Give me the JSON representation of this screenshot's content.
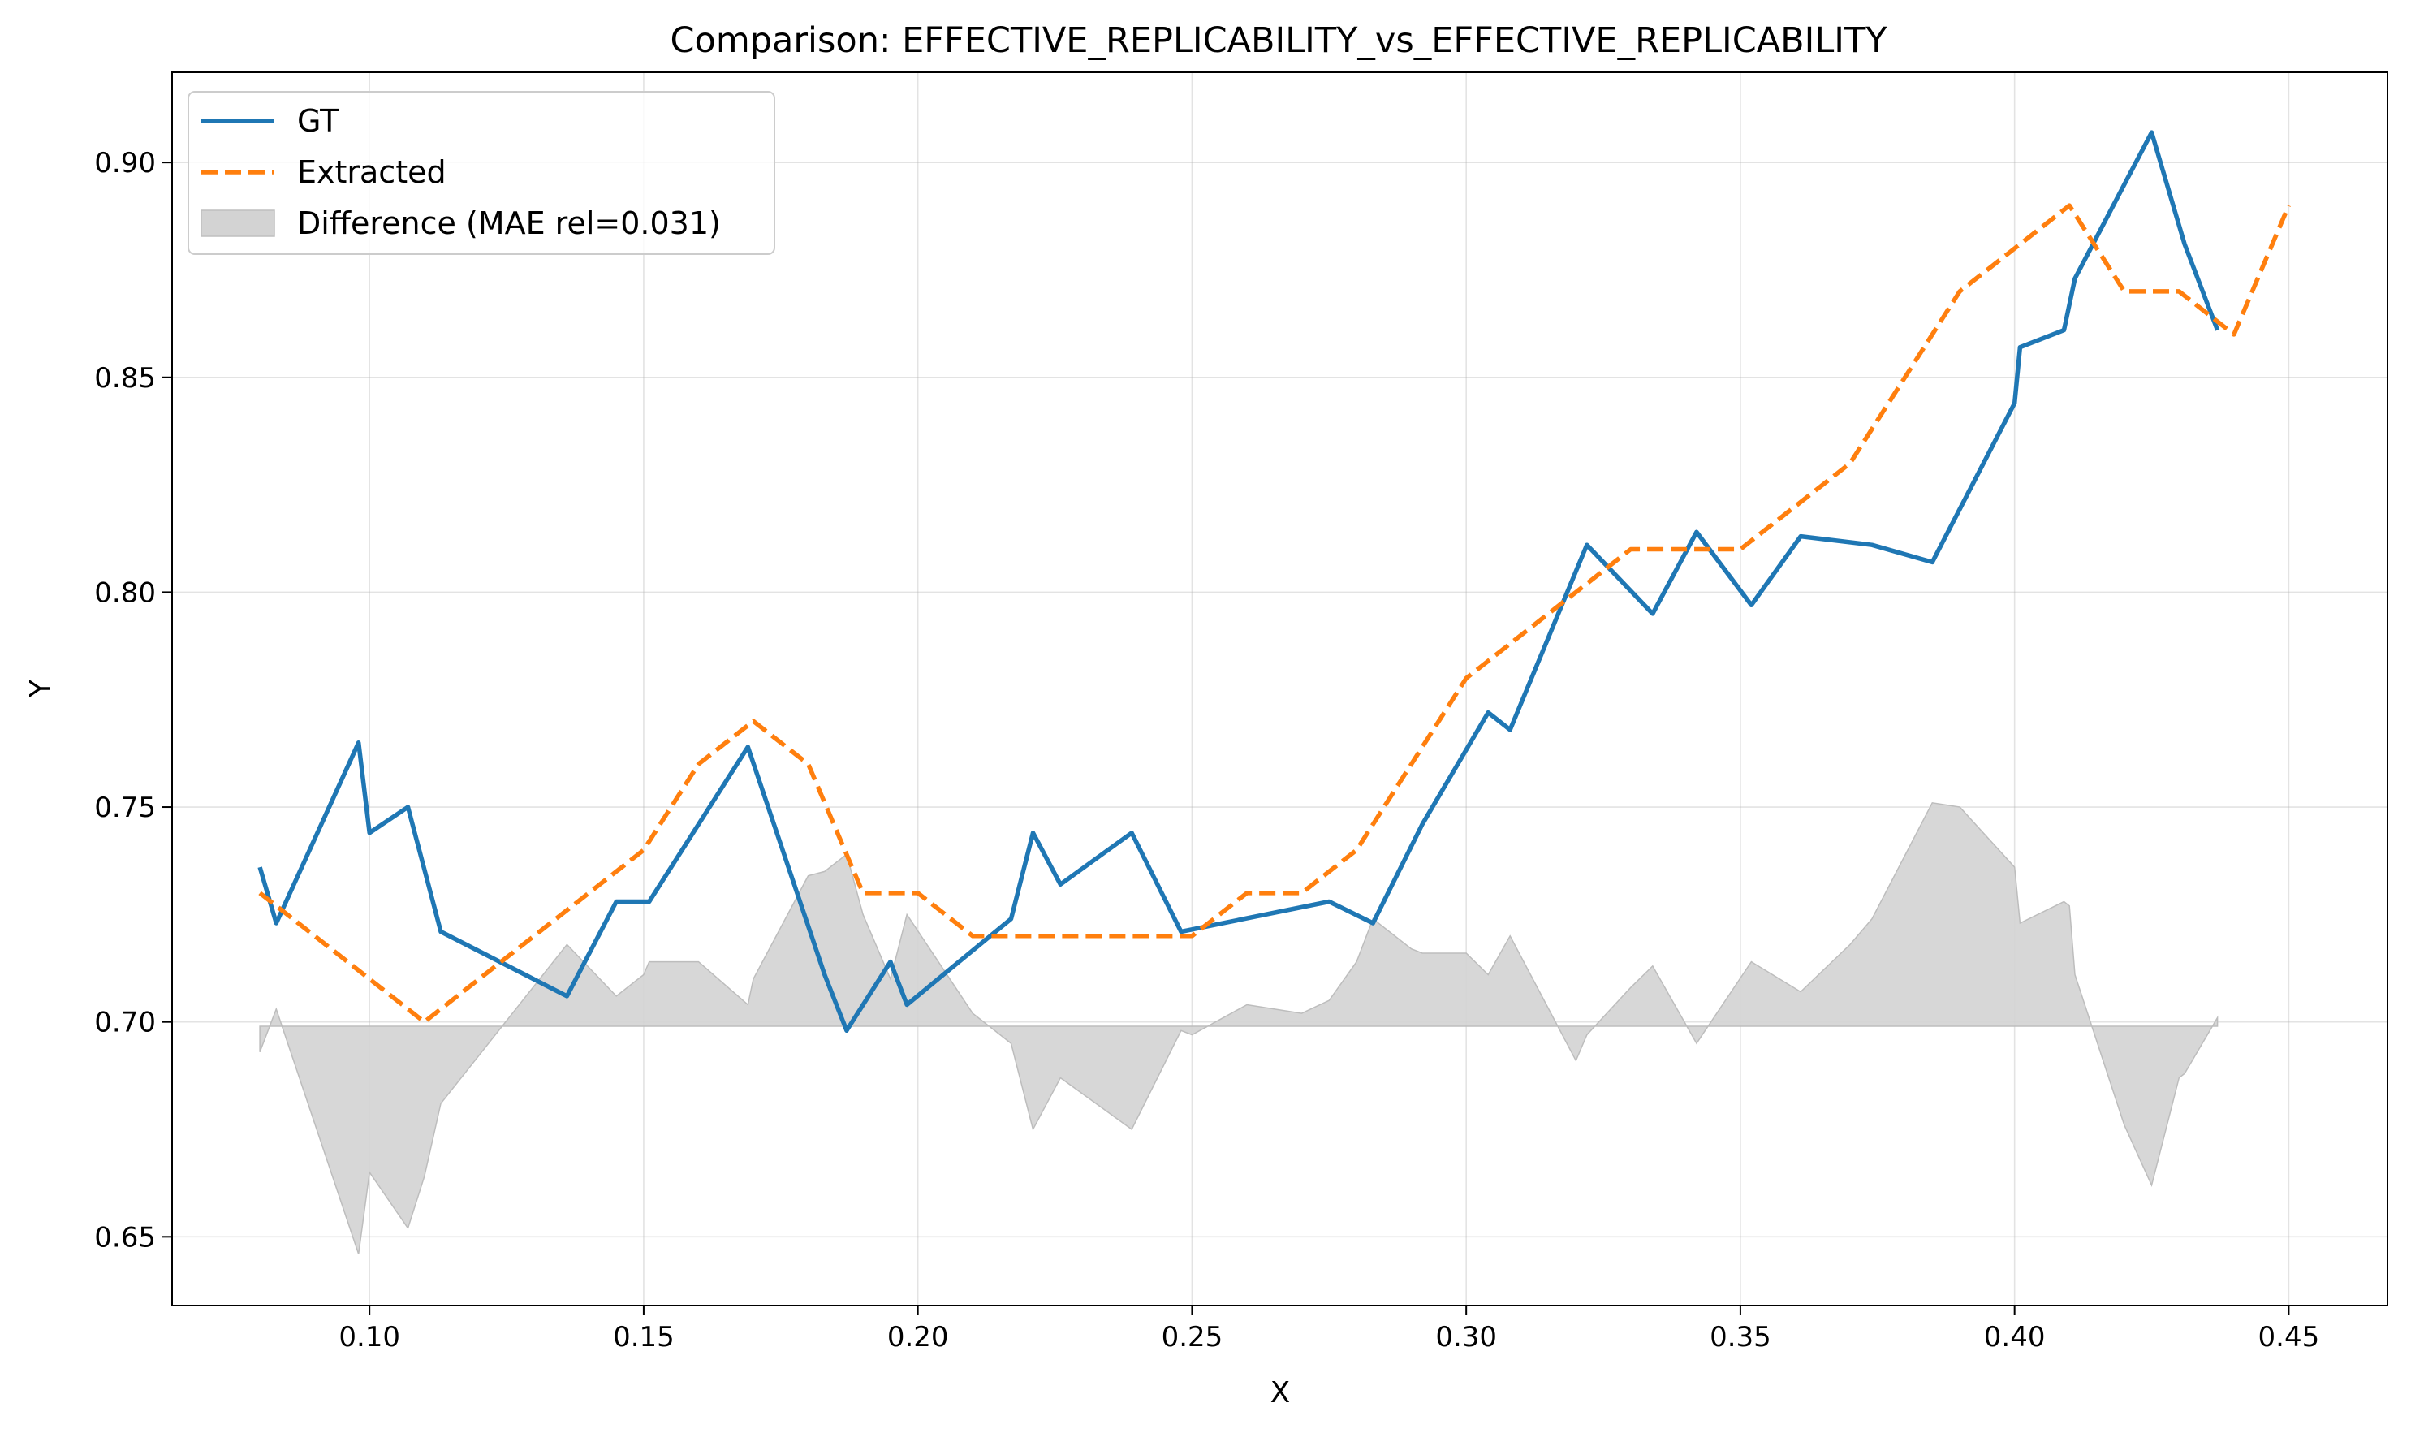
{
  "chart_data": {
    "type": "line",
    "title": "Comparison: EFFECTIVE_REPLICABILITY_vs_EFFECTIVE_REPLICABILITY",
    "xlabel": "X",
    "ylabel": "Y",
    "xlim": [
      0.064,
      0.468
    ],
    "ylim": [
      0.634,
      0.921
    ],
    "xticks": [
      "0.10",
      "0.15",
      "0.20",
      "0.25",
      "0.30",
      "0.35",
      "0.40",
      "0.45"
    ],
    "xtick_values": [
      0.1,
      0.15,
      0.2,
      0.25,
      0.3,
      0.35,
      0.4,
      0.45
    ],
    "yticks": [
      "0.65",
      "0.70",
      "0.75",
      "0.80",
      "0.85",
      "0.90"
    ],
    "ytick_values": [
      0.65,
      0.7,
      0.75,
      0.8,
      0.85,
      0.9
    ],
    "grid": true,
    "legend_position": "top-left",
    "difference_baseline": 0.699,
    "series": [
      {
        "name": "GT",
        "color": "#1f77b4",
        "style": "solid",
        "x": [
          0.08,
          0.083,
          0.098,
          0.1,
          0.107,
          0.113,
          0.136,
          0.145,
          0.151,
          0.169,
          0.183,
          0.187,
          0.195,
          0.198,
          0.217,
          0.221,
          0.226,
          0.239,
          0.248,
          0.275,
          0.283,
          0.292,
          0.304,
          0.308,
          0.322,
          0.334,
          0.342,
          0.352,
          0.361,
          0.374,
          0.385,
          0.4,
          0.401,
          0.409,
          0.411,
          0.425,
          0.431,
          0.437
        ],
        "y": [
          0.736,
          0.723,
          0.765,
          0.744,
          0.75,
          0.721,
          0.706,
          0.728,
          0.728,
          0.764,
          0.711,
          0.698,
          0.714,
          0.704,
          0.724,
          0.744,
          0.732,
          0.744,
          0.721,
          0.728,
          0.723,
          0.746,
          0.772,
          0.768,
          0.811,
          0.795,
          0.814,
          0.797,
          0.813,
          0.811,
          0.807,
          0.844,
          0.857,
          0.861,
          0.873,
          0.907,
          0.881,
          0.861
        ]
      },
      {
        "name": "Extracted",
        "color": "#ff7f0e",
        "style": "dashed",
        "x": [
          0.08,
          0.11,
          0.15,
          0.16,
          0.17,
          0.18,
          0.19,
          0.2,
          0.21,
          0.25,
          0.26,
          0.27,
          0.28,
          0.29,
          0.3,
          0.31,
          0.32,
          0.33,
          0.34,
          0.35,
          0.36,
          0.37,
          0.38,
          0.39,
          0.4,
          0.41,
          0.42,
          0.43,
          0.44,
          0.45
        ],
        "y": [
          0.73,
          0.7,
          0.74,
          0.76,
          0.77,
          0.76,
          0.73,
          0.73,
          0.72,
          0.72,
          0.73,
          0.73,
          0.74,
          0.76,
          0.78,
          0.79,
          0.8,
          0.81,
          0.81,
          0.81,
          0.82,
          0.83,
          0.85,
          0.87,
          0.88,
          0.89,
          0.87,
          0.87,
          0.86,
          0.89
        ]
      },
      {
        "name": "Difference (MAE rel=0.031)",
        "color": "#d3d3d3",
        "style": "fill",
        "x": [
          0.08,
          0.083,
          0.098,
          0.1,
          0.107,
          0.11,
          0.113,
          0.136,
          0.145,
          0.15,
          0.151,
          0.16,
          0.169,
          0.17,
          0.18,
          0.183,
          0.187,
          0.19,
          0.195,
          0.198,
          0.21,
          0.217,
          0.221,
          0.226,
          0.239,
          0.248,
          0.25,
          0.26,
          0.27,
          0.275,
          0.28,
          0.283,
          0.29,
          0.292,
          0.3,
          0.304,
          0.308,
          0.32,
          0.322,
          0.33,
          0.334,
          0.342,
          0.352,
          0.361,
          0.37,
          0.374,
          0.385,
          0.39,
          0.4,
          0.401,
          0.409,
          0.41,
          0.411,
          0.42,
          0.425,
          0.43,
          0.431,
          0.437
        ],
        "y": [
          0.693,
          0.703,
          0.646,
          0.665,
          0.652,
          0.664,
          0.681,
          0.718,
          0.706,
          0.711,
          0.714,
          0.714,
          0.704,
          0.71,
          0.734,
          0.735,
          0.739,
          0.725,
          0.71,
          0.725,
          0.702,
          0.695,
          0.675,
          0.687,
          0.675,
          0.698,
          0.697,
          0.704,
          0.702,
          0.705,
          0.714,
          0.724,
          0.717,
          0.716,
          0.716,
          0.711,
          0.72,
          0.691,
          0.697,
          0.708,
          0.713,
          0.695,
          0.714,
          0.707,
          0.718,
          0.724,
          0.751,
          0.75,
          0.736,
          0.723,
          0.728,
          0.727,
          0.711,
          0.676,
          0.662,
          0.687,
          0.688,
          0.701
        ]
      }
    ]
  }
}
